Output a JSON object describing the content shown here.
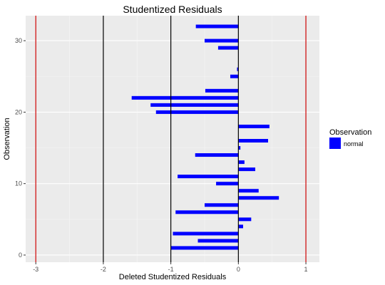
{
  "chart_data": {
    "type": "bar",
    "orientation": "horizontal",
    "title": "Studentized Residuals",
    "xlabel": "Deleted Studentized Residuals",
    "ylabel": "Observation",
    "xlim": [
      -3.15,
      1.2
    ],
    "ylim": [
      -1,
      33.5
    ],
    "x_ticks": [
      -3,
      -2,
      -1,
      0,
      1
    ],
    "y_ticks": [
      0,
      10,
      20,
      30
    ],
    "grid": true,
    "reference_lines": [
      {
        "x": -3,
        "color": "#cc0000"
      },
      {
        "x": 1,
        "color": "#cc0000"
      },
      {
        "x": -2,
        "color": "#000000"
      },
      {
        "x": -1,
        "color": "#000000"
      },
      {
        "x": 0,
        "color": "#000000"
      }
    ],
    "legend": {
      "title": "Observation",
      "placement": "right",
      "entries": [
        {
          "label": "normal",
          "color": "#0000ff"
        }
      ]
    },
    "series": [
      {
        "name": "normal",
        "color": "#0000ff",
        "y": [
          1,
          2,
          3,
          4,
          5,
          6,
          7,
          8,
          9,
          10,
          11,
          12,
          13,
          14,
          15,
          16,
          17,
          18,
          19,
          20,
          21,
          22,
          23,
          24,
          25,
          26,
          27,
          28,
          29,
          30,
          31,
          32
        ],
        "values": [
          -1.0,
          -0.6,
          -0.97,
          0.07,
          0.19,
          -0.93,
          -0.5,
          0.6,
          0.3,
          -0.33,
          -0.9,
          0.25,
          0.09,
          -0.64,
          0.03,
          0.44,
          null,
          0.46,
          null,
          -1.22,
          -1.3,
          -1.58,
          -0.49,
          null,
          -0.12,
          -0.02,
          null,
          null,
          -0.3,
          -0.5,
          null,
          -0.63
        ]
      }
    ]
  },
  "colors": {
    "panel_background": "#ebebeb",
    "grid_major": "#ffffff",
    "grid_minor": "#f5f5f5",
    "bar": "#0000ff"
  }
}
